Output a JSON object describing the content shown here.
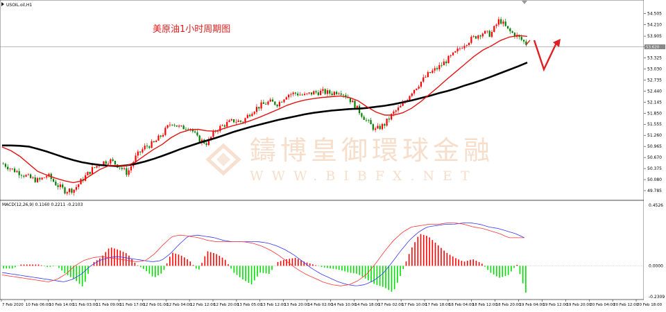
{
  "header": {
    "symbol": "USOIL.oil,H1",
    "annotation": "美原油1小时周期图"
  },
  "watermark": {
    "cn": "鑄博皇御環球金融",
    "en": "WWW.BIBFX.NET"
  },
  "macd_header": "MACD(12,26,9) 0.1160 0.2211 -0.2103",
  "colors": {
    "bull": "#ff0000",
    "bear": "#008000",
    "ma_fast": "#ff0000",
    "ma_slow": "#000000",
    "hist_pos": "#ff0000",
    "hist_neg": "#00dd00",
    "signal": "#3333ff",
    "macd_line": "#ff3333",
    "arrow": "#e02020"
  },
  "chart_data": {
    "type": "candlestick",
    "symbol": "USOIL.oil",
    "timeframe": "H1",
    "ylim": [
      49.6,
      54.72
    ],
    "y_ticks": [
      "54.505",
      "54.210",
      "53.905",
      "53.620",
      "53.325",
      "53.030",
      "52.735",
      "52.440",
      "52.145",
      "51.850",
      "51.555",
      "51.260",
      "50.965",
      "50.670",
      "50.375",
      "50.080",
      "49.785"
    ],
    "current_price": "53.620",
    "dates": [
      "7 Feb 2020",
      "10 Feb 06:00",
      "10 Feb 14:00",
      "11 Feb 03:00",
      "11 Feb 09:00",
      "11 Feb 17:00",
      "12 Feb 01:00",
      "12 Feb 04:00",
      "12 Feb 12:00",
      "12 Feb 20:00",
      "13 Feb 05:00",
      "13 Feb 12:00",
      "13 Feb 20:00",
      "14 Feb 02:00",
      "14 Feb 10:00",
      "14 Feb 18:00",
      "17 Feb 02:00",
      "17 Feb 10:00",
      "17 Feb 18:00",
      "18 Feb 04:00",
      "18 Feb 12:00",
      "18 Feb 20:00",
      "19 Feb 04:00",
      "19 Feb 12:00",
      "19 Feb 20:00",
      "20 Feb 04:00",
      "20 Feb 12:00",
      "20 Feb 18:00"
    ],
    "close_series": [
      50.5,
      50.35,
      50.25,
      50.12,
      50.05,
      50.2,
      49.95,
      49.78,
      49.82,
      50.1,
      50.35,
      50.52,
      50.6,
      50.45,
      50.25,
      50.7,
      50.95,
      51.05,
      51.3,
      51.62,
      51.45,
      51.5,
      51.15,
      51.05,
      51.4,
      51.55,
      51.65,
      51.62,
      51.9,
      52.05,
      52.15,
      52.1,
      52.35,
      52.38,
      52.32,
      52.4,
      52.42,
      52.38,
      52.45,
      52.25,
      51.95,
      51.65,
      51.4,
      51.55,
      51.85,
      52.05,
      52.4,
      52.65,
      52.9,
      53.05,
      53.25,
      53.45,
      53.7,
      53.85,
      54.0,
      53.95,
      54.35,
      54.05,
      53.9,
      53.7
    ],
    "ma_fast_series": [
      50.95,
      50.85,
      50.7,
      50.5,
      50.3,
      50.2,
      50.12,
      50.05,
      50.0,
      50.05,
      50.2,
      50.35,
      50.45,
      50.45,
      50.45,
      50.55,
      50.72,
      50.88,
      51.02,
      51.2,
      51.33,
      51.4,
      51.42,
      51.38,
      51.37,
      51.45,
      51.52,
      51.58,
      51.66,
      51.75,
      51.85,
      51.95,
      52.06,
      52.14,
      52.2,
      52.24,
      52.27,
      52.29,
      52.31,
      52.27,
      52.18,
      52.02,
      51.88,
      51.8,
      51.8,
      51.86,
      51.98,
      52.15,
      52.35,
      52.55,
      52.76,
      52.96,
      53.16,
      53.36,
      53.53,
      53.65,
      53.79,
      53.88,
      53.92,
      53.9
    ],
    "ma_slow_series": [
      50.99,
      50.99,
      50.98,
      50.96,
      50.9,
      50.83,
      50.75,
      50.67,
      50.6,
      50.54,
      50.5,
      50.47,
      50.45,
      50.44,
      50.46,
      50.5,
      50.56,
      50.63,
      50.71,
      50.8,
      50.89,
      50.97,
      51.05,
      51.12,
      51.19,
      51.27,
      51.35,
      51.42,
      51.49,
      51.55,
      51.61,
      51.67,
      51.72,
      51.77,
      51.82,
      51.86,
      51.89,
      51.92,
      51.94,
      51.96,
      51.97,
      51.99,
      52.02,
      52.05,
      52.09,
      52.14,
      52.19,
      52.25,
      52.31,
      52.38,
      52.44,
      52.51,
      52.59,
      52.66,
      52.74,
      52.83,
      52.92,
      53.01,
      53.1,
      53.2
    ],
    "macd": {
      "ylim": [
        -0.2309,
        0.4526
      ],
      "y_ticks": [
        "0.4526",
        "0.0000",
        "-0.2309"
      ],
      "histogram": [
        -0.02,
        -0.02,
        0.01,
        0.01,
        0.01,
        -0.01,
        0.0,
        -0.06,
        -0.1,
        -0.16,
        0.02,
        0.06,
        0.14,
        0.12,
        0.09,
        0.01,
        -0.03,
        -0.09,
        -0.05,
        0.1,
        0.08,
        0.04,
        -0.04,
        0.11,
        0.09,
        0.05,
        -0.05,
        -0.1,
        -0.14,
        -0.05,
        -0.06,
        0.03,
        0.05,
        0.06,
        0.03,
        0.01,
        -0.01,
        -0.02,
        -0.03,
        -0.05,
        -0.06,
        -0.1,
        -0.14,
        -0.16,
        -0.2,
        -0.05,
        0.12,
        0.24,
        0.22,
        0.16,
        0.1,
        0.06,
        0.03,
        0.05,
        0.02,
        -0.05,
        -0.09,
        -0.07,
        0.01,
        -0.2
      ],
      "signal": [
        -0.05,
        -0.06,
        -0.07,
        -0.08,
        -0.09,
        -0.1,
        -0.11,
        -0.12,
        -0.1,
        -0.06,
        0.0,
        0.04,
        0.06,
        0.07,
        0.06,
        0.05,
        0.04,
        0.03,
        0.04,
        0.09,
        0.16,
        0.22,
        0.23,
        0.22,
        0.21,
        0.19,
        0.18,
        0.18,
        0.18,
        0.18,
        0.17,
        0.15,
        0.12,
        0.08,
        0.03,
        -0.02,
        -0.06,
        -0.09,
        -0.12,
        -0.14,
        -0.15,
        -0.14,
        -0.11,
        -0.06,
        0.02,
        0.11,
        0.19,
        0.25,
        0.29,
        0.3,
        0.31,
        0.31,
        0.32,
        0.32,
        0.31,
        0.29,
        0.28,
        0.26,
        0.24,
        0.21
      ]
    }
  },
  "prediction_arrow": "down-then-up"
}
